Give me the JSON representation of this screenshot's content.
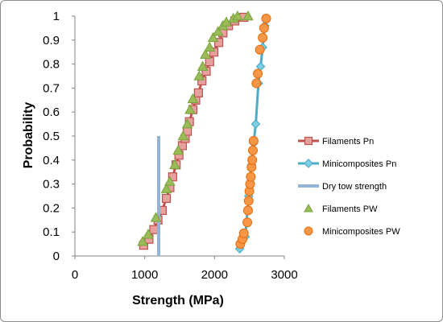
{
  "chart_data": {
    "type": "scatter",
    "title": "",
    "xlabel": "Strength (MPa)",
    "ylabel": "Probability",
    "xlim": [
      0,
      3000
    ],
    "ylim": [
      0,
      1
    ],
    "x_ticks": [
      "0",
      "1000",
      "2000",
      "3000"
    ],
    "y_ticks": [
      "0",
      "0.1",
      "0.2",
      "0.3",
      "0.4",
      "0.5",
      "0.6",
      "0.7",
      "0.8",
      "0.9",
      "1"
    ],
    "grid": false,
    "legend_position": "right",
    "series": [
      {
        "name": "Filaments Pn",
        "kind": "line-marker",
        "marker": "square",
        "color": "#c0504d",
        "fill": "#e6a09d",
        "points": [
          [
            985,
            0.045
          ],
          [
            1060,
            0.07
          ],
          [
            1130,
            0.11
          ],
          [
            1190,
            0.15
          ],
          [
            1250,
            0.19
          ],
          [
            1310,
            0.24
          ],
          [
            1360,
            0.285
          ],
          [
            1400,
            0.33
          ],
          [
            1450,
            0.38
          ],
          [
            1490,
            0.42
          ],
          [
            1540,
            0.46
          ],
          [
            1580,
            0.49
          ],
          [
            1610,
            0.52
          ],
          [
            1640,
            0.56
          ],
          [
            1690,
            0.61
          ],
          [
            1730,
            0.65
          ],
          [
            1770,
            0.68
          ],
          [
            1820,
            0.73
          ],
          [
            1880,
            0.77
          ],
          [
            1930,
            0.81
          ],
          [
            1990,
            0.85
          ],
          [
            2060,
            0.89
          ],
          [
            2120,
            0.93
          ],
          [
            2200,
            0.96
          ],
          [
            2290,
            0.98
          ],
          [
            2420,
            0.995
          ]
        ]
      },
      {
        "name": "Minicomposites Pn",
        "kind": "line-marker",
        "marker": "diamond",
        "color": "#4bacc6",
        "fill": "#7fd0e6",
        "points": [
          [
            2360,
            0.03
          ],
          [
            2440,
            0.08
          ],
          [
            2490,
            0.25
          ],
          [
            2530,
            0.38
          ],
          [
            2560,
            0.47
          ],
          [
            2590,
            0.55
          ],
          [
            2630,
            0.72
          ],
          [
            2660,
            0.79
          ],
          [
            2690,
            0.87
          ],
          [
            2720,
            0.96
          ]
        ]
      },
      {
        "name": "Dry tow strength",
        "kind": "bar-line",
        "color": "#95b3d7",
        "x": 1200,
        "y_range": [
          0,
          0.5
        ]
      },
      {
        "name": "Filaments PW",
        "kind": "marker",
        "marker": "triangle",
        "color": "#77a43b",
        "fill": "#9bbb59",
        "points": [
          [
            970,
            0.06
          ],
          [
            1050,
            0.09
          ],
          [
            1160,
            0.16
          ],
          [
            1310,
            0.28
          ],
          [
            1360,
            0.31
          ],
          [
            1430,
            0.38
          ],
          [
            1480,
            0.44
          ],
          [
            1550,
            0.5
          ],
          [
            1610,
            0.55
          ],
          [
            1650,
            0.61
          ],
          [
            1690,
            0.655
          ],
          [
            1780,
            0.75
          ],
          [
            1830,
            0.79
          ],
          [
            1870,
            0.84
          ],
          [
            1930,
            0.87
          ],
          [
            1980,
            0.91
          ],
          [
            2050,
            0.935
          ],
          [
            2120,
            0.96
          ],
          [
            2170,
            0.975
          ],
          [
            2270,
            0.99
          ],
          [
            2330,
            1.0
          ],
          [
            2480,
            1.0
          ]
        ]
      },
      {
        "name": "Minicomposites PW",
        "kind": "marker",
        "marker": "circle",
        "color": "#e46c0a",
        "fill": "#f79646",
        "points": [
          [
            2370,
            0.05
          ],
          [
            2400,
            0.07
          ],
          [
            2420,
            0.095
          ],
          [
            2470,
            0.14
          ],
          [
            2480,
            0.19
          ],
          [
            2490,
            0.23
          ],
          [
            2500,
            0.27
          ],
          [
            2510,
            0.3
          ],
          [
            2520,
            0.33
          ],
          [
            2530,
            0.37
          ],
          [
            2540,
            0.4
          ],
          [
            2550,
            0.44
          ],
          [
            2560,
            0.48
          ],
          [
            2600,
            0.72
          ],
          [
            2620,
            0.76
          ],
          [
            2650,
            0.86
          ],
          [
            2690,
            0.91
          ],
          [
            2710,
            0.95
          ],
          [
            2740,
            0.99
          ]
        ]
      }
    ]
  }
}
